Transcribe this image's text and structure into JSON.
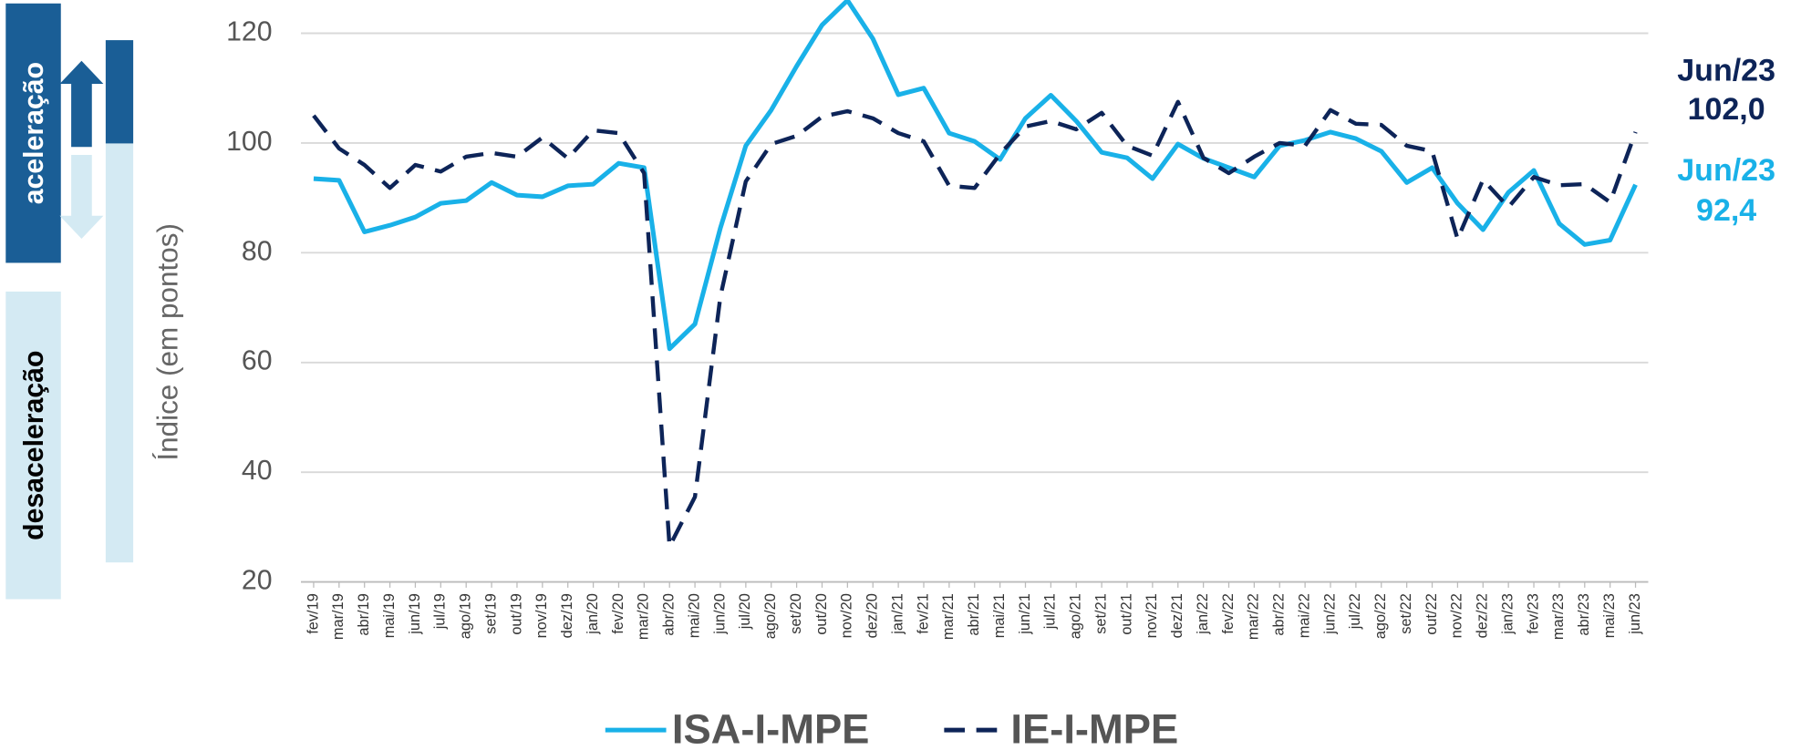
{
  "chart_data": {
    "type": "line",
    "y_label": "Índice (em pontos)",
    "side_labels": [
      "aceleração",
      "desaceleração"
    ],
    "annotations": [
      {
        "text": "Jun/23",
        "color": "#0d2458"
      },
      {
        "text": "102,0",
        "color": "#0d2458"
      },
      {
        "text": "Jun/23",
        "color": "#19b1e8"
      },
      {
        "text": "92,4",
        "color": "#19b1e8"
      }
    ],
    "categories": [
      "fev/19",
      "mar/19",
      "abr/19",
      "mai/19",
      "jun/19",
      "jul/19",
      "ago/19",
      "set/19",
      "out/19",
      "nov/19",
      "dez/19",
      "jan/20",
      "fev/20",
      "mar/20",
      "abr/20",
      "mai/20",
      "jun/20",
      "jul/20",
      "ago/20",
      "set/20",
      "out/20",
      "nov/20",
      "dez/20",
      "jan/21",
      "fev/21",
      "mar/21",
      "abr/21",
      "mai/21",
      "jun/21",
      "jul/21",
      "ago/21",
      "set/21",
      "out/21",
      "nov/21",
      "dez/21",
      "jan/22",
      "fev/22",
      "mar/22",
      "abr/22",
      "mai/22",
      "jun/22",
      "jul/22",
      "ago/22",
      "set/22",
      "out/22",
      "nov/22",
      "dez/22",
      "jan/23",
      "fev/23",
      "mar/23",
      "abr/23",
      "mai/23",
      "jun/23"
    ],
    "series": [
      {
        "name": "ISA-I-MPE",
        "color": "#19b1e8",
        "dashed": false,
        "values": [
          93.5,
          93.2,
          83.8,
          85,
          86.5,
          89,
          89.5,
          92.8,
          90.5,
          90.2,
          92.2,
          92.5,
          96.3,
          95.5,
          62.5,
          67,
          84.5,
          99.5,
          106,
          114,
          121.5,
          126,
          119,
          108.8,
          110,
          101.8,
          100.3,
          97,
          104.5,
          108.7,
          104,
          98.3,
          97.3,
          93.5,
          99.8,
          97.2,
          95.5,
          93.8,
          99.5,
          100.5,
          102,
          100.8,
          98.5,
          92.8,
          95.5,
          89,
          84.2,
          91,
          95,
          85.3,
          81.5,
          82.3,
          92.4
        ]
      },
      {
        "name": "IE-I-MPE",
        "color": "#0d2458",
        "dashed": true,
        "values": [
          105,
          99,
          96,
          91.8,
          96,
          94.8,
          97.5,
          98.2,
          97.5,
          101,
          97.2,
          102.3,
          101.8,
          94.5,
          26.5,
          35.5,
          72,
          93,
          99.8,
          101.3,
          104.8,
          105.8,
          104.5,
          101.8,
          100.3,
          92.2,
          91.8,
          98,
          103,
          104,
          102.5,
          105.5,
          99.5,
          97.7,
          107.5,
          97.3,
          94.5,
          97.5,
          100,
          99.5,
          106,
          103.5,
          103.3,
          99.5,
          98.5,
          82.5,
          93.3,
          88.3,
          93.8,
          92.3,
          92.5,
          89.2,
          102
        ]
      }
    ],
    "ylim": [
      20,
      126
    ],
    "yticks": [
      20,
      40,
      60,
      80,
      100,
      120
    ],
    "grid": true
  }
}
